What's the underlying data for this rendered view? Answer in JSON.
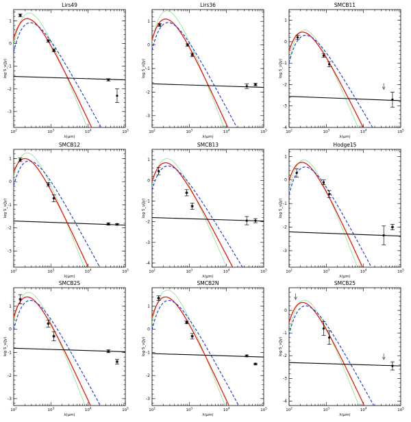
{
  "axis_labels": {
    "xlabel": "λ(μm)",
    "ylabel": "log S_ν(Jy)"
  },
  "colors": {
    "model_red": "#e8160c",
    "model_blue": "#1f3fd6",
    "model_green": "#7be07b",
    "power_law": "#000000",
    "points": "#000000"
  },
  "chart_data": [
    {
      "type": "scatter",
      "title": "Lirs49",
      "xscale": "log",
      "xlim": [
        100,
        100000
      ],
      "ylim": [
        -3.7,
        1.5
      ],
      "yticks": [
        1,
        0,
        -1,
        -2,
        -3
      ],
      "points": [
        {
          "x": 150,
          "y": 1.25,
          "err": 0.06,
          "marker": "star"
        },
        {
          "x": 850,
          "y": 0.12,
          "err": 0.05,
          "marker": "star"
        },
        {
          "x": 1200,
          "y": -0.3,
          "err": 0.06,
          "marker": "star"
        },
        {
          "x": 35000,
          "y": -1.6,
          "err": 0.05,
          "marker": "dot"
        },
        {
          "x": 60000,
          "y": -2.3,
          "err": 0.3,
          "marker": "dot"
        }
      ],
      "red": {
        "peak_x": 230,
        "peak_y": 1.1
      },
      "blue": {
        "peak_x": 280,
        "peak_y": 0.92
      },
      "green": {
        "peak_x": 260,
        "peak_y": 1.35
      },
      "powerlaw": {
        "y_at_100": -1.45,
        "y_at_100000": -1.6
      }
    },
    {
      "type": "scatter",
      "title": "Lirs36",
      "xscale": "log",
      "xlim": [
        100,
        100000
      ],
      "ylim": [
        -3.5,
        1.5
      ],
      "yticks": [
        1,
        0,
        -1,
        -2,
        -3
      ],
      "points": [
        {
          "x": 160,
          "y": 0.85,
          "err": 0.06,
          "marker": "star"
        },
        {
          "x": 900,
          "y": 0.0,
          "err": 0.05,
          "marker": "star"
        },
        {
          "x": 1200,
          "y": -0.42,
          "err": 0.08,
          "marker": "star"
        },
        {
          "x": 35000,
          "y": -1.75,
          "err": 0.1,
          "marker": "dot"
        },
        {
          "x": 60000,
          "y": -1.68,
          "err": 0.05,
          "marker": "star"
        }
      ],
      "red": {
        "peak_x": 230,
        "peak_y": 1.1
      },
      "blue": {
        "peak_x": 270,
        "peak_y": 0.95
      },
      "green": {
        "peak_x": 250,
        "peak_y": 1.45
      },
      "powerlaw": {
        "y_at_100": -1.65,
        "y_at_100000": -1.8
      }
    },
    {
      "type": "scatter",
      "title": "SMCB11",
      "xscale": "log",
      "xlim": [
        100,
        100000
      ],
      "ylim": [
        -4.0,
        1.5
      ],
      "yticks": [
        1,
        0,
        -1,
        -2,
        -3,
        -4
      ],
      "points": [
        {
          "x": 170,
          "y": 0.2,
          "err": 0.1,
          "marker": "dot"
        },
        {
          "x": 850,
          "y": -0.65,
          "err": 0.08,
          "marker": "dot"
        },
        {
          "x": 1200,
          "y": -1.05,
          "err": 0.12,
          "marker": "dot"
        },
        {
          "x": 35000,
          "y": -2.1,
          "err": 0.08,
          "marker": "arrow"
        },
        {
          "x": 60000,
          "y": -2.7,
          "err": 0.35,
          "marker": "dot"
        }
      ],
      "red": {
        "peak_x": 230,
        "peak_y": 0.45
      },
      "blue": {
        "peak_x": 280,
        "peak_y": 0.3
      },
      "green": {
        "peak_x": 260,
        "peak_y": 0.55
      },
      "powerlaw": {
        "y_at_100": -2.55,
        "y_at_100000": -2.75
      }
    },
    {
      "type": "scatter",
      "title": "SMCB12",
      "xscale": "log",
      "xlim": [
        100,
        100000
      ],
      "ylim": [
        -3.7,
        1.4
      ],
      "yticks": [
        1,
        0,
        -1,
        -2,
        -3
      ],
      "points": [
        {
          "x": 150,
          "y": 0.95,
          "err": 0.08,
          "marker": "star"
        },
        {
          "x": 850,
          "y": -0.12,
          "err": 0.08,
          "marker": "star"
        },
        {
          "x": 1200,
          "y": -0.72,
          "err": 0.15,
          "marker": "star"
        },
        {
          "x": 35000,
          "y": -1.83,
          "err": 0.05,
          "marker": "star"
        },
        {
          "x": 60000,
          "y": -1.85,
          "err": 0.03,
          "marker": "star"
        }
      ],
      "red": {
        "peak_x": 200,
        "peak_y": 1.0
      },
      "blue": {
        "peak_x": 260,
        "peak_y": 0.9
      },
      "green": {
        "peak_x": 230,
        "peak_y": 1.25
      },
      "powerlaw": {
        "y_at_100": -1.7,
        "y_at_100000": -1.88
      }
    },
    {
      "type": "scatter",
      "title": "SMCB13",
      "xscale": "log",
      "xlim": [
        100,
        100000
      ],
      "ylim": [
        -4.2,
        1.5
      ],
      "yticks": [
        1,
        0,
        -1,
        -2,
        -3,
        -4
      ],
      "points": [
        {
          "x": 150,
          "y": 0.45,
          "err": 0.18,
          "marker": "dot"
        },
        {
          "x": 850,
          "y": -0.6,
          "err": 0.15,
          "marker": "star"
        },
        {
          "x": 1200,
          "y": -1.25,
          "err": 0.15,
          "marker": "star"
        },
        {
          "x": 35000,
          "y": -1.95,
          "err": 0.2,
          "marker": "dot"
        },
        {
          "x": 60000,
          "y": -1.95,
          "err": 0.1,
          "marker": "dot"
        }
      ],
      "red": {
        "peak_x": 230,
        "peak_y": 0.85
      },
      "blue": {
        "peak_x": 270,
        "peak_y": 0.7
      },
      "green": {
        "peak_x": 250,
        "peak_y": 1.05
      },
      "powerlaw": {
        "y_at_100": -1.8,
        "y_at_100000": -1.97
      }
    },
    {
      "type": "scatter",
      "title": "Hodge15",
      "xscale": "log",
      "xlim": [
        100,
        100000
      ],
      "ylim": [
        -3.7,
        1.3
      ],
      "yticks": [
        1,
        0,
        -1,
        -2,
        -3
      ],
      "points": [
        {
          "x": 160,
          "y": 0.3,
          "err": 0.18,
          "marker": "dot"
        },
        {
          "x": 850,
          "y": -0.1,
          "err": 0.1,
          "marker": "dot"
        },
        {
          "x": 1200,
          "y": -0.6,
          "err": 0.15,
          "marker": "dot"
        },
        {
          "x": 35000,
          "y": -2.35,
          "err": 0.4,
          "marker": "dot"
        },
        {
          "x": 60000,
          "y": -2.0,
          "err": 0.12,
          "marker": "star"
        }
      ],
      "red": {
        "peak_x": 220,
        "peak_y": 0.75
      },
      "blue": {
        "peak_x": 270,
        "peak_y": 0.55
      },
      "green": {
        "peak_x": 250,
        "peak_y": 0.85
      },
      "powerlaw": {
        "y_at_100": -2.2,
        "y_at_100000": -2.38
      }
    },
    {
      "type": "scatter",
      "title": "SMCB2S",
      "xscale": "log",
      "xlim": [
        100,
        100000
      ],
      "ylim": [
        -3.3,
        1.8
      ],
      "yticks": [
        1,
        0,
        -1,
        -2,
        -3
      ],
      "points": [
        {
          "x": 150,
          "y": 1.3,
          "err": 0.2,
          "marker": "star"
        },
        {
          "x": 850,
          "y": 0.25,
          "err": 0.15,
          "marker": "star"
        },
        {
          "x": 1200,
          "y": -0.3,
          "err": 0.2,
          "marker": "star"
        },
        {
          "x": 35000,
          "y": -0.95,
          "err": 0.06,
          "marker": "star"
        },
        {
          "x": 60000,
          "y": -1.4,
          "err": 0.1,
          "marker": "star"
        }
      ],
      "red": {
        "peak_x": 230,
        "peak_y": 1.4
      },
      "blue": {
        "peak_x": 280,
        "peak_y": 1.25
      },
      "green": {
        "peak_x": 250,
        "peak_y": 1.6
      },
      "powerlaw": {
        "y_at_100": -0.82,
        "y_at_100000": -0.97
      }
    },
    {
      "type": "scatter",
      "title": "SMCB2N",
      "xscale": "log",
      "xlim": [
        100,
        100000
      ],
      "ylim": [
        -3.3,
        1.8
      ],
      "yticks": [
        1,
        0,
        -1,
        -2,
        -3
      ],
      "points": [
        {
          "x": 150,
          "y": 1.35,
          "err": 0.1,
          "marker": "star"
        },
        {
          "x": 850,
          "y": 0.3,
          "err": 0.06,
          "marker": "star"
        },
        {
          "x": 1200,
          "y": -0.3,
          "err": 0.12,
          "marker": "star"
        },
        {
          "x": 35000,
          "y": -1.15,
          "err": 0.04,
          "marker": "star"
        },
        {
          "x": 60000,
          "y": -1.5,
          "err": 0.03,
          "marker": "star"
        }
      ],
      "red": {
        "peak_x": 230,
        "peak_y": 1.4
      },
      "blue": {
        "peak_x": 280,
        "peak_y": 1.25
      },
      "green": {
        "peak_x": 260,
        "peak_y": 1.7
      },
      "powerlaw": {
        "y_at_100": -1.05,
        "y_at_100000": -1.2
      }
    },
    {
      "type": "scatter",
      "title": "SMCB25",
      "xscale": "log",
      "xlim": [
        100,
        100000
      ],
      "ylim": [
        -4.2,
        1.0
      ],
      "yticks": [
        0,
        -1,
        -2,
        -3,
        -4
      ],
      "points": [
        {
          "x": 150,
          "y": 0.6,
          "err": 0.1,
          "marker": "arrow"
        },
        {
          "x": 850,
          "y": -0.8,
          "err": 0.3,
          "marker": "dot"
        },
        {
          "x": 1200,
          "y": -1.2,
          "err": 0.3,
          "marker": "dot"
        },
        {
          "x": 35000,
          "y": -2.05,
          "err": 0.08,
          "marker": "arrow"
        },
        {
          "x": 60000,
          "y": -2.45,
          "err": 0.18,
          "marker": "dot"
        }
      ],
      "red": {
        "peak_x": 230,
        "peak_y": 0.35
      },
      "blue": {
        "peak_x": 280,
        "peak_y": 0.2
      },
      "green": {
        "peak_x": 260,
        "peak_y": 0.45
      },
      "powerlaw": {
        "y_at_100": -2.3,
        "y_at_100000": -2.45
      }
    }
  ]
}
